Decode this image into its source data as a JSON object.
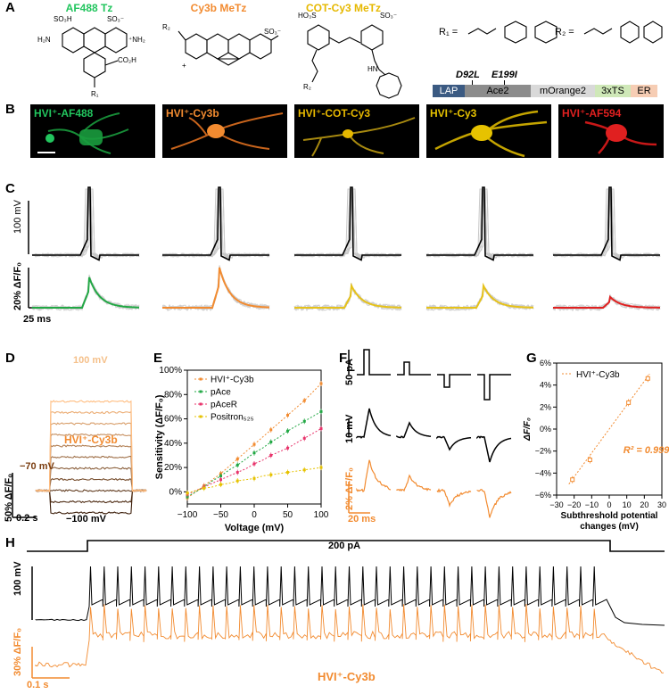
{
  "panelA": {
    "label": "A",
    "molecules": [
      {
        "name": "AF488 Tz",
        "color": "#22c55e"
      },
      {
        "name": "Cy3b MeTz",
        "color": "#f28b30"
      },
      {
        "name": "COT-Cy3 MeTz",
        "color": "#e6b800"
      }
    ],
    "r1": "R₁ =",
    "r2": "R₂ =",
    "construct": {
      "mut1": "D92L",
      "mut2": "E199I",
      "segments": [
        {
          "label": "LAP",
          "color": "#3b5a82",
          "text": "#ffffff"
        },
        {
          "label": "Ace2",
          "color": "#8c8c8c",
          "text": "#000000"
        },
        {
          "label": "mOrange2",
          "color": "#d9d9d9",
          "text": "#000000"
        },
        {
          "label": "3xTS",
          "color": "#cfe8b8",
          "text": "#000000"
        },
        {
          "label": "ER",
          "color": "#f6cdb4",
          "text": "#000000"
        }
      ]
    }
  },
  "panelB": {
    "label": "B",
    "images": [
      {
        "title": "HVI⁺-AF488",
        "color": "#22c55e",
        "glow": "#1a9c3e"
      },
      {
        "title": "HVI⁺-Cy3b",
        "color": "#f28b30",
        "glow": "#c8641c"
      },
      {
        "title": "HVI⁺-COT-Cy3",
        "color": "#e6b800",
        "glow": "#a88a10"
      },
      {
        "title": "HVI⁺-Cy3",
        "color": "#e6c200",
        "glow": "#c4a400"
      },
      {
        "title": "HVI⁺-AF594",
        "color": "#e02020",
        "glow": "#c81818"
      }
    ]
  },
  "panelC": {
    "label": "C",
    "voltage_scale": "100 mV",
    "df_scale": "20% ΔF/F₀",
    "time_scale": "25 ms",
    "trace_colors": [
      "#22a845",
      "#f28b30",
      "#e6c21a",
      "#e6c21a",
      "#e02020"
    ],
    "peak_amplitudes": [
      0.62,
      0.82,
      0.45,
      0.45,
      0.22
    ]
  },
  "panelD": {
    "label": "D",
    "top_label": "100 mV",
    "bottom_label": "−100 mV",
    "hold_label": "−70 mV",
    "sensor_label": "HVI⁺-Cy3b",
    "y_scale": "50% ΔF/F₀",
    "x_scale": "0.2 s"
  },
  "panelE": {
    "label": "E",
    "chart_data": {
      "type": "line",
      "xlabel": "Voltage (mV)",
      "ylabel": "Sensitivity (ΔF/F₀)",
      "xlim": [
        -100,
        100
      ],
      "ylim": [
        -10,
        100
      ],
      "xticks": [
        "−100",
        "−50",
        "0",
        "50",
        "100"
      ],
      "yticks": [
        "0%",
        "20%",
        "40%",
        "60%",
        "80%",
        "100%"
      ],
      "x": [
        -100,
        -87.5,
        -75,
        -62.5,
        -50,
        -37.5,
        -25,
        -12.5,
        0,
        12.5,
        25,
        37.5,
        50,
        62.5,
        75,
        87.5,
        100
      ],
      "series": [
        {
          "name": "HVI⁺-Cy3b",
          "color": "#f28b30",
          "values": [
            -5,
            0,
            5,
            10,
            15,
            21,
            27,
            33,
            39,
            45,
            51,
            57,
            63,
            69,
            75,
            82,
            89
          ]
        },
        {
          "name": "pAce",
          "color": "#22a845",
          "values": [
            -4,
            0,
            4,
            9,
            13,
            18,
            22,
            27,
            32,
            36,
            41,
            45,
            50,
            54,
            58,
            62,
            66
          ]
        },
        {
          "name": "pAceR",
          "color": "#e8336b",
          "values": [
            -2,
            1,
            4,
            7,
            10,
            13,
            16,
            19,
            23,
            26,
            30,
            33,
            36,
            40,
            44,
            48,
            52
          ]
        },
        {
          "name": "Positron₅₂₅",
          "color": "#e6c200",
          "values": [
            -1,
            1,
            3,
            4,
            6,
            7,
            9,
            10,
            11,
            13,
            14,
            15,
            16,
            17,
            18,
            19,
            20
          ]
        }
      ]
    }
  },
  "panelF": {
    "label": "F",
    "current_scale": "50 pA",
    "voltage_scale": "10 mV",
    "df_scale": "2% ΔF/F₀",
    "time_scale": "20 ms"
  },
  "panelG": {
    "label": "G",
    "chart_data": {
      "type": "scatter",
      "legend": "HVI⁺-Cy3b",
      "xlabel": "Subthreshold potential changes (mV)",
      "ylabel": "ΔF/F₀",
      "xlim": [
        -30,
        30
      ],
      "ylim": [
        -6,
        6
      ],
      "xticks": [
        "−30",
        "−20",
        "−10",
        "0",
        "10",
        "20",
        "30"
      ],
      "yticks": [
        "−6%",
        "−4%",
        "−2%",
        "0%",
        "2%",
        "4%",
        "6%"
      ],
      "x": [
        -21,
        -11,
        11,
        22
      ],
      "values": [
        -4.6,
        -2.8,
        2.4,
        4.6
      ],
      "fit_label": "R² = 0.999",
      "color": "#f28b30"
    }
  },
  "panelH": {
    "label": "H",
    "current": "200 pA",
    "voltage_scale": "100 mV",
    "df_scale": "30% ΔF/F₀",
    "time_scale": "0.1 s",
    "sensor_label": "HVI⁺-Cy3b",
    "spike_count": 38
  }
}
